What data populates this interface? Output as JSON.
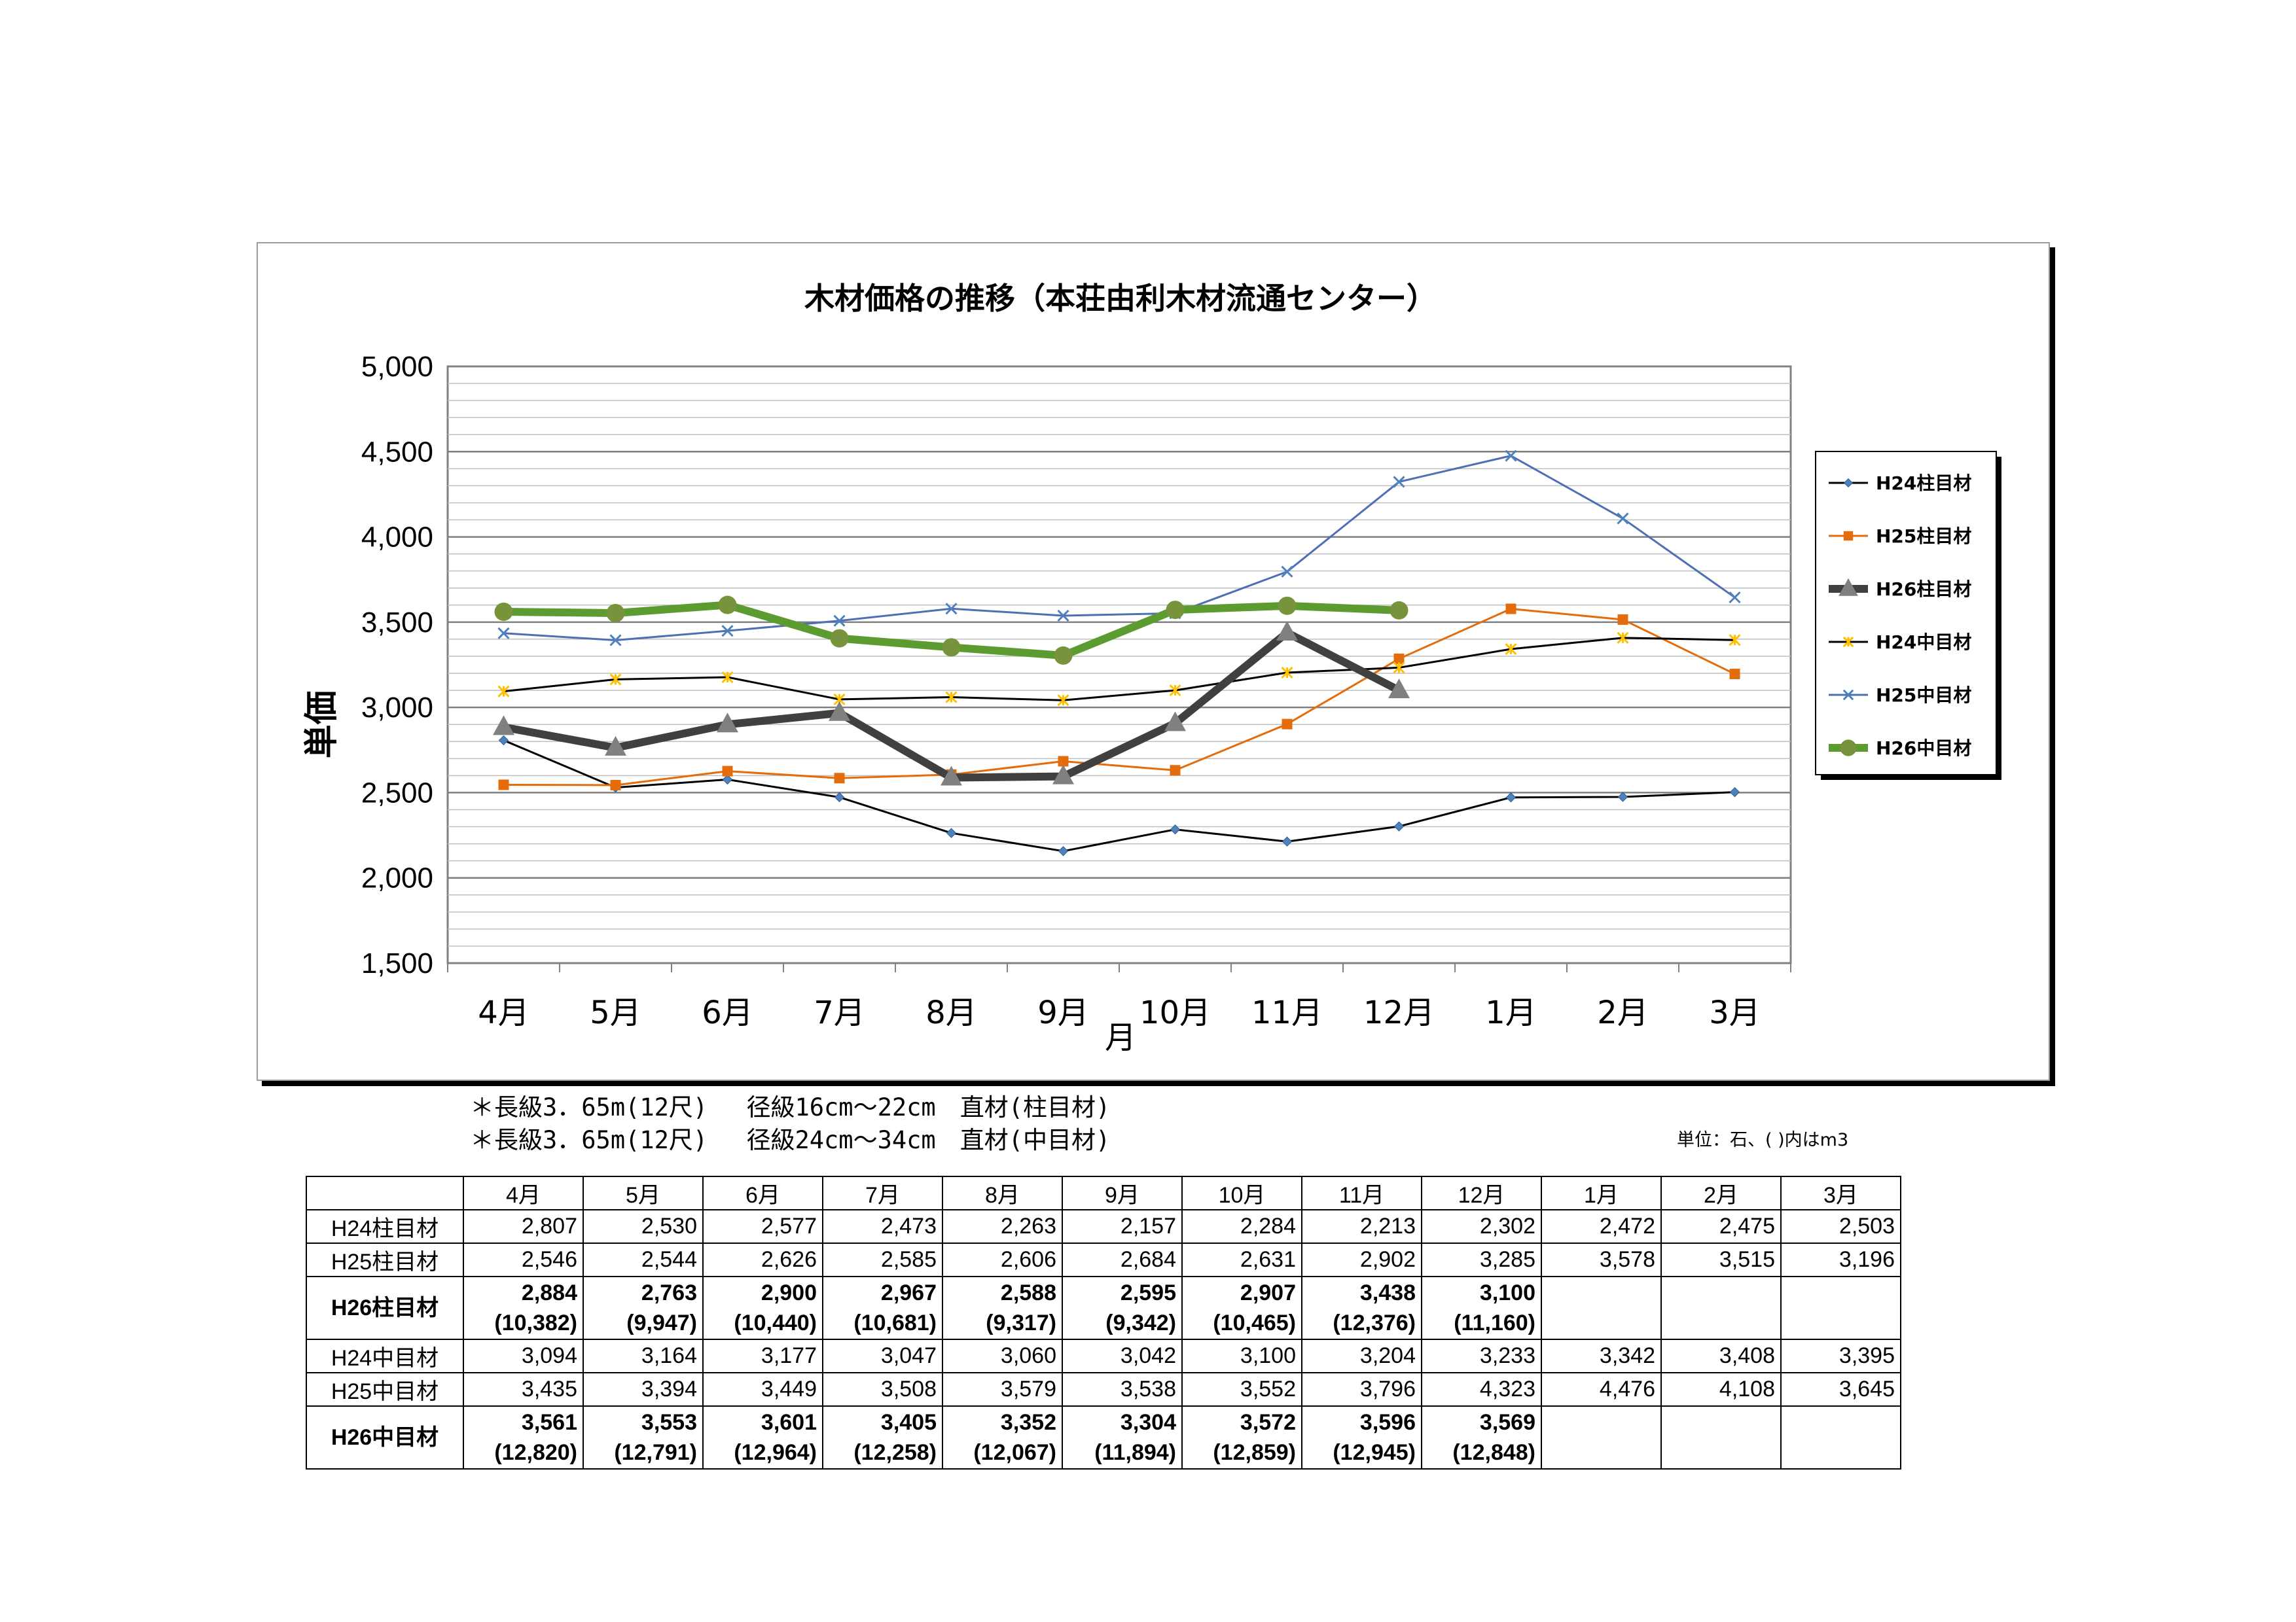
{
  "chart_data": {
    "type": "line",
    "title": "木材価格の推移（本荘由利木材流通センター）",
    "ylabel": "単価",
    "xlabel": "月",
    "ylim": [
      1500,
      5000
    ],
    "yticks": [
      "1,500",
      "2,000",
      "2,500",
      "3,000",
      "3,500",
      "4,000",
      "4,500",
      "5,000"
    ],
    "ytick_values": [
      1500,
      2000,
      2500,
      3000,
      3500,
      4000,
      4500,
      5000
    ],
    "categories": [
      "4月",
      "5月",
      "6月",
      "7月",
      "8月",
      "9月",
      "10月",
      "11月",
      "12月",
      "1月",
      "2月",
      "3月"
    ],
    "grid": true,
    "legend": "right",
    "series": [
      {
        "name": "H24柱目材",
        "color": "#4f81bd",
        "marker": "diamond",
        "values": [
          2807,
          2530,
          2577,
          2473,
          2263,
          2157,
          2284,
          2213,
          2302,
          2472,
          2475,
          2503
        ],
        "line_color": "#000000"
      },
      {
        "name": "H25柱目材",
        "color": "#e46c0a",
        "marker": "square",
        "values": [
          2546,
          2544,
          2626,
          2585,
          2606,
          2684,
          2631,
          2902,
          3285,
          3578,
          3515,
          3196
        ],
        "line_color": "#e46c0a"
      },
      {
        "name": "H26柱目材",
        "color": "#808080",
        "marker": "triangle",
        "values": [
          2884,
          2763,
          2900,
          2967,
          2588,
          2595,
          2907,
          3438,
          3100,
          null,
          null,
          null
        ],
        "line_color": "#404040"
      },
      {
        "name": "H24中目材",
        "color": "#ffc000",
        "marker": "star",
        "values": [
          3094,
          3164,
          3177,
          3047,
          3060,
          3042,
          3100,
          3204,
          3233,
          3342,
          3408,
          3395
        ],
        "line_color": "#000000"
      },
      {
        "name": "H25中目材",
        "color": "#4f81bd",
        "marker": "x",
        "values": [
          3435,
          3394,
          3449,
          3508,
          3579,
          3538,
          3552,
          3796,
          4323,
          4476,
          4108,
          3645
        ],
        "line_color": "#4f6fb5"
      },
      {
        "name": "H26中目材",
        "color": "#77933c",
        "marker": "circle",
        "values": [
          3561,
          3553,
          3601,
          3405,
          3352,
          3304,
          3572,
          3596,
          3569,
          null,
          null,
          null
        ],
        "line_color": "#5c9b2f"
      }
    ]
  },
  "notes": {
    "line1": "＊長級3．65m(12尺)　 径級16cm～22cm　直材(柱目材)",
    "line2": "＊長級3．65m(12尺)　 径級24cm～34cm　直材(中目材)",
    "unit": "単位：石、( )内はm3"
  },
  "table": {
    "headers": [
      "",
      "4月",
      "5月",
      "6月",
      "7月",
      "8月",
      "9月",
      "10月",
      "11月",
      "12月",
      "1月",
      "2月",
      "3月"
    ],
    "rows": [
      {
        "label": "H24柱目材",
        "bold": false,
        "values": [
          "2,807",
          "2,530",
          "2,577",
          "2,473",
          "2,263",
          "2,157",
          "2,284",
          "2,213",
          "2,302",
          "2,472",
          "2,475",
          "2,503"
        ],
        "subs": []
      },
      {
        "label": "H25柱目材",
        "bold": false,
        "values": [
          "2,546",
          "2,544",
          "2,626",
          "2,585",
          "2,606",
          "2,684",
          "2,631",
          "2,902",
          "3,285",
          "3,578",
          "3,515",
          "3,196"
        ],
        "subs": []
      },
      {
        "label": "H26柱目材",
        "bold": true,
        "values": [
          "2,884",
          "2,763",
          "2,900",
          "2,967",
          "2,588",
          "2,595",
          "2,907",
          "3,438",
          "3,100",
          "",
          "",
          ""
        ],
        "subs": [
          "(10,382)",
          "(9,947)",
          "(10,440)",
          "(10,681)",
          "(9,317)",
          "(9,342)",
          "(10,465)",
          "(12,376)",
          "(11,160)",
          "",
          "",
          ""
        ]
      },
      {
        "label": "H24中目材",
        "bold": false,
        "values": [
          "3,094",
          "3,164",
          "3,177",
          "3,047",
          "3,060",
          "3,042",
          "3,100",
          "3,204",
          "3,233",
          "3,342",
          "3,408",
          "3,395"
        ],
        "subs": []
      },
      {
        "label": "H25中目材",
        "bold": false,
        "values": [
          "3,435",
          "3,394",
          "3,449",
          "3,508",
          "3,579",
          "3,538",
          "3,552",
          "3,796",
          "4,323",
          "4,476",
          "4,108",
          "3,645"
        ],
        "subs": []
      },
      {
        "label": "H26中目材",
        "bold": true,
        "values": [
          "3,561",
          "3,553",
          "3,601",
          "3,405",
          "3,352",
          "3,304",
          "3,572",
          "3,596",
          "3,569",
          "",
          "",
          ""
        ],
        "subs": [
          "(12,820)",
          "(12,791)",
          "(12,964)",
          "(12,258)",
          "(12,067)",
          "(11,894)",
          "(12,859)",
          "(12,945)",
          "(12,848)",
          "",
          "",
          ""
        ]
      }
    ]
  }
}
